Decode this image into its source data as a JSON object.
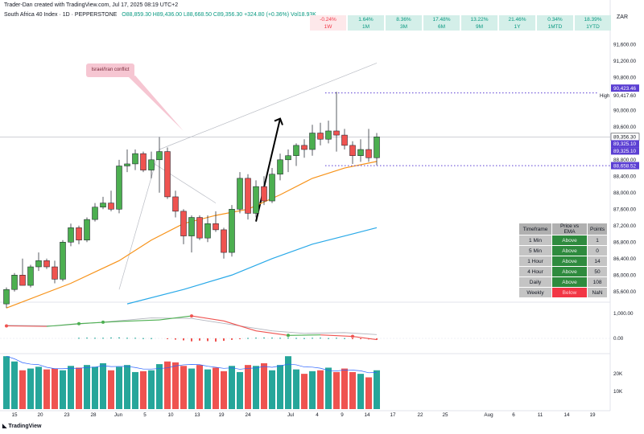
{
  "header": {
    "credit": "Trader-Dan created with TradingView.com, Jul 17, 2025 08:19 UTC+2",
    "symbol": "South Africa 40 Index · 1D · PEPPERSTONE",
    "ohlc": "O88,859.30 H89,436.00 L88,668.50 C89,356.30 +324.80 (+0.36%) Vol18.93K"
  },
  "performance": [
    {
      "value": "-0.24%",
      "label": "1W",
      "trend": "negative"
    },
    {
      "value": "1.64%",
      "label": "1M",
      "trend": "positive"
    },
    {
      "value": "8.36%",
      "label": "3M",
      "trend": "positive"
    },
    {
      "value": "17.48%",
      "label": "6M",
      "trend": "positive"
    },
    {
      "value": "13.22%",
      "label": "9M",
      "trend": "positive"
    },
    {
      "value": "21.46%",
      "label": "1Y",
      "trend": "positive"
    },
    {
      "value": "0.34%",
      "label": "1MTD",
      "trend": "positive"
    },
    {
      "value": "18.39%",
      "label": "1YTD",
      "trend": "positive"
    }
  ],
  "currency": "ZAR",
  "annotation": "Israel/Iran conflict",
  "ema_table": {
    "headers": [
      "Timeframe",
      "Price vs EMA",
      "Points"
    ],
    "rows": [
      {
        "timeframe": "1 Min",
        "status": "Above",
        "points": "1"
      },
      {
        "timeframe": "5 Min",
        "status": "Above",
        "points": "0"
      },
      {
        "timeframe": "1 Hour",
        "status": "Above",
        "points": "14"
      },
      {
        "timeframe": "4 Hour",
        "status": "Above",
        "points": "50"
      },
      {
        "timeframe": "Daily",
        "status": "Above",
        "points": "108"
      },
      {
        "timeframe": "Weekly",
        "status": "Below",
        "points": "NaN"
      }
    ]
  },
  "watermark": "TradingView",
  "colors": {
    "up": "#4caf50",
    "down": "#ef5350",
    "ema_short": "#f7931a",
    "ema_long": "#29a9e8",
    "vol_up": "#26a69a",
    "vol_down": "#ef5350",
    "price_tag": "#5b3fd3"
  },
  "chart_data": {
    "type": "candlestick",
    "price_axis": {
      "min": 85400,
      "max": 91900,
      "ticks": [
        85600,
        86000,
        86400,
        86800,
        87200,
        87600,
        88000,
        88400,
        88800,
        89200,
        89600,
        90000,
        90400,
        90800,
        91200,
        91600
      ]
    },
    "price_labels": [
      {
        "value": 90423.46,
        "text": "90,423.46",
        "kind": "high-line"
      },
      {
        "value": 90417.6,
        "text": "90,417.60",
        "kind": "high-price",
        "tag": "High"
      },
      {
        "value": 89356.3,
        "text": "89,356.30",
        "kind": "last"
      },
      {
        "value": 89325.1,
        "text": "89,325.10",
        "kind": "ema"
      },
      {
        "value": 89325.1,
        "text": "89,325.10",
        "kind": "ema"
      },
      {
        "value": 88658.52,
        "text": "88,658.52",
        "kind": "low-line"
      }
    ],
    "dotted_lines": [
      90423.46,
      88658.52
    ],
    "time_axis": [
      "15",
      "20",
      "23",
      "28",
      "Jun",
      "5",
      "10",
      "13",
      "19",
      "24",
      "Jul",
      "4",
      "9",
      "14",
      "17",
      "22",
      "25",
      "Aug",
      "6",
      "11",
      "14",
      "19"
    ],
    "candles": [
      [
        85300,
        85700,
        85200,
        85650
      ],
      [
        85650,
        86050,
        85600,
        86000
      ],
      [
        86000,
        86400,
        85750,
        85750
      ],
      [
        85750,
        86250,
        85700,
        86200
      ],
      [
        86200,
        86550,
        86100,
        86350
      ],
      [
        86350,
        86400,
        86150,
        86200
      ],
      [
        86200,
        86350,
        85800,
        85900
      ],
      [
        85900,
        86850,
        85850,
        86800
      ],
      [
        86800,
        87250,
        86700,
        87150
      ],
      [
        87150,
        87200,
        86750,
        86850
      ],
      [
        86850,
        87400,
        86800,
        87350
      ],
      [
        87350,
        87750,
        87300,
        87650
      ],
      [
        87650,
        87900,
        87600,
        87750
      ],
      [
        87750,
        88050,
        87550,
        87600
      ],
      [
        87600,
        88800,
        87500,
        88650
      ],
      [
        88650,
        89050,
        88500,
        88700
      ],
      [
        88700,
        89050,
        88550,
        88950
      ],
      [
        88950,
        89000,
        88500,
        88550
      ],
      [
        88550,
        89000,
        88350,
        88800
      ],
      [
        88800,
        89350,
        88000,
        89000
      ],
      [
        89000,
        89100,
        87850,
        87900
      ],
      [
        87900,
        88050,
        87400,
        87550
      ],
      [
        87550,
        87600,
        86750,
        86950
      ],
      [
        86950,
        87450,
        86550,
        87400
      ],
      [
        87400,
        87450,
        86850,
        86900
      ],
      [
        86900,
        87450,
        86800,
        87250
      ],
      [
        87250,
        87550,
        87050,
        87100
      ],
      [
        87100,
        87150,
        86400,
        86550
      ],
      [
        86550,
        87700,
        86450,
        87600
      ],
      [
        87600,
        88500,
        87500,
        88350
      ],
      [
        88350,
        88450,
        87350,
        87500
      ],
      [
        87500,
        88300,
        87400,
        88150
      ],
      [
        88150,
        88400,
        87700,
        87800
      ],
      [
        87800,
        88600,
        87750,
        88450
      ],
      [
        88450,
        88950,
        88300,
        88800
      ],
      [
        88800,
        89050,
        88500,
        88900
      ],
      [
        88900,
        89200,
        88650,
        89150
      ],
      [
        89150,
        89300,
        88850,
        89050
      ],
      [
        89050,
        89650,
        88900,
        89450
      ],
      [
        89450,
        89700,
        89150,
        89300
      ],
      [
        89300,
        89750,
        89200,
        89500
      ],
      [
        89500,
        90450,
        89000,
        89400
      ],
      [
        89400,
        89550,
        89050,
        89150
      ],
      [
        89150,
        89250,
        88700,
        88900
      ],
      [
        88900,
        89300,
        88750,
        89050
      ],
      [
        89050,
        89550,
        88750,
        88850
      ],
      [
        88850,
        89450,
        88668,
        89356
      ]
    ],
    "ema_short": [
      [
        0,
        85200
      ],
      [
        8,
        85800
      ],
      [
        14,
        86350
      ],
      [
        18,
        86850
      ],
      [
        22,
        87250
      ],
      [
        26,
        87450
      ],
      [
        30,
        87600
      ],
      [
        34,
        87950
      ],
      [
        38,
        88350
      ],
      [
        42,
        88600
      ],
      [
        46,
        88760
      ]
    ],
    "ema_long": [
      [
        15,
        85300
      ],
      [
        22,
        85650
      ],
      [
        28,
        86000
      ],
      [
        33,
        86400
      ],
      [
        38,
        86750
      ],
      [
        43,
        87000
      ],
      [
        46,
        87150
      ]
    ],
    "trend_lines": [
      {
        "from": [
          19,
          89050
        ],
        "to": [
          46,
          91150
        ]
      },
      {
        "from": [
          14,
          85650
        ],
        "to": [
          19,
          89050
        ]
      },
      {
        "from": [
          18,
          88750
        ],
        "to": [
          26,
          87750
        ]
      }
    ],
    "arrow": {
      "from": [
        31,
        87300
      ],
      "to": [
        34,
        89800
      ]
    },
    "volume_axis": {
      "ticks": [
        {
          "value": 10000,
          "text": "10K"
        },
        {
          "value": 20000,
          "text": "20K"
        }
      ],
      "max": 31000
    },
    "volume": [
      30000,
      27000,
      22000,
      23000,
      24000,
      22500,
      23000,
      22000,
      24500,
      23500,
      25000,
      24000,
      26000,
      22000,
      24000,
      25000,
      21000,
      21500,
      22000,
      25500,
      27000,
      26500,
      24500,
      23000,
      25000,
      22500,
      23500,
      21500,
      24500,
      21000,
      25000,
      24500,
      26000,
      22000,
      25000,
      30000,
      22500,
      20000,
      21500,
      22000,
      23500,
      21000,
      23000,
      21000,
      20000,
      18000,
      22000
    ],
    "oscillator": {
      "axis_ticks": [
        {
          "value": 1000,
          "text": "1,000.00"
        },
        {
          "value": 0,
          "text": "0.00"
        }
      ],
      "line_a": [
        [
          0,
          500
        ],
        [
          5,
          480
        ],
        [
          9,
          590
        ],
        [
          14,
          680
        ],
        [
          19,
          740
        ],
        [
          23,
          900
        ],
        [
          27,
          700
        ],
        [
          31,
          300
        ],
        [
          35,
          120
        ],
        [
          39,
          140
        ],
        [
          43,
          80
        ],
        [
          46,
          -50
        ]
      ],
      "line_b": [
        [
          0,
          520
        ],
        [
          6,
          500
        ],
        [
          12,
          650
        ],
        [
          18,
          820
        ],
        [
          23,
          800
        ],
        [
          28,
          550
        ],
        [
          33,
          300
        ],
        [
          37,
          200
        ],
        [
          42,
          230
        ],
        [
          46,
          150
        ]
      ],
      "histogram": [
        [
          0,
          0
        ],
        [
          1,
          0
        ],
        [
          2,
          0
        ],
        [
          3,
          0
        ],
        [
          4,
          0
        ],
        [
          5,
          0
        ],
        [
          6,
          0
        ],
        [
          7,
          0
        ],
        [
          8,
          0
        ],
        [
          9,
          20
        ],
        [
          10,
          25
        ],
        [
          11,
          20
        ],
        [
          12,
          20
        ],
        [
          13,
          30
        ],
        [
          14,
          35
        ],
        [
          15,
          20
        ],
        [
          16,
          20
        ],
        [
          17,
          10
        ],
        [
          18,
          10
        ],
        [
          19,
          0
        ],
        [
          20,
          -30
        ],
        [
          21,
          -50
        ],
        [
          22,
          -80
        ],
        [
          23,
          -120
        ],
        [
          24,
          -90
        ],
        [
          25,
          -110
        ],
        [
          26,
          -130
        ],
        [
          27,
          -100
        ],
        [
          28,
          -60
        ],
        [
          29,
          -20
        ],
        [
          30,
          15
        ],
        [
          31,
          25
        ],
        [
          32,
          30
        ],
        [
          33,
          25
        ],
        [
          34,
          20
        ],
        [
          35,
          25
        ],
        [
          36,
          15
        ],
        [
          37,
          10
        ],
        [
          38,
          20
        ],
        [
          39,
          25
        ],
        [
          40,
          10
        ],
        [
          41,
          20
        ],
        [
          42,
          10
        ],
        [
          43,
          -10
        ],
        [
          44,
          -30
        ],
        [
          45,
          -40
        ],
        [
          46,
          -60
        ]
      ]
    }
  }
}
